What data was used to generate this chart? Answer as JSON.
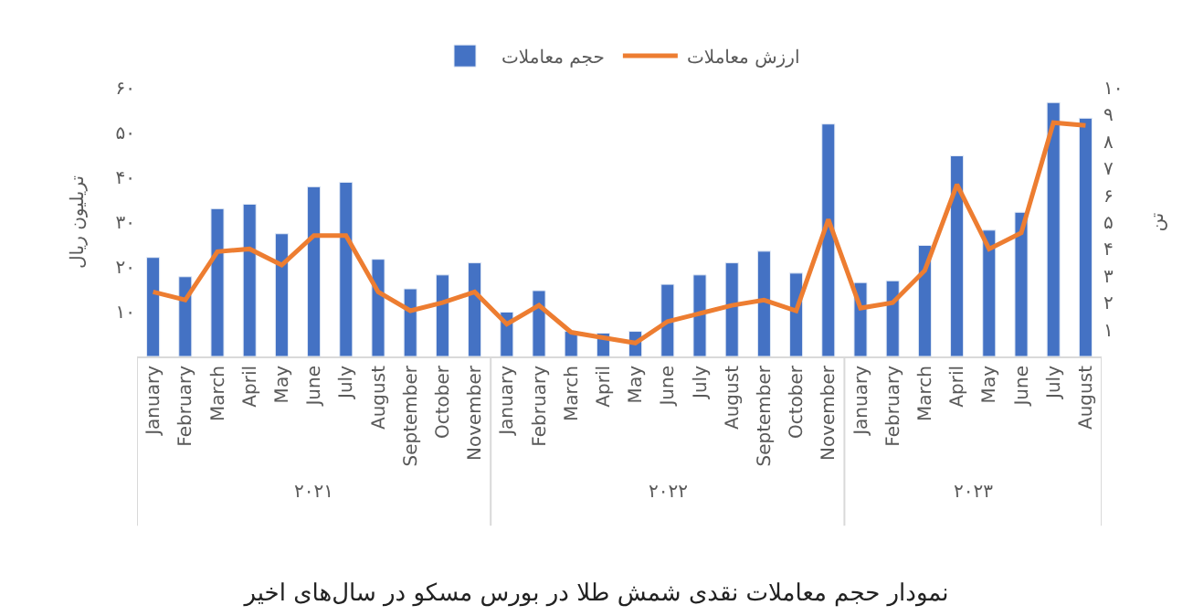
{
  "chart_data": {
    "type": "bar",
    "title": "نمودار حجم معاملات نقدی شمش طلا در بورس مسکو در سال‌های اخیر",
    "categories": [
      "January",
      "February",
      "March",
      "April",
      "May",
      "June",
      "July",
      "August",
      "September",
      "October",
      "November",
      "January",
      "February",
      "March",
      "April",
      "May",
      "June",
      "July",
      "August",
      "September",
      "October",
      "November",
      "January",
      "February",
      "March",
      "April",
      "May",
      "June",
      "July",
      "August"
    ],
    "annotations": [
      "۲۰۲۱",
      "۲۰۲۲",
      "۲۰۲۳"
    ],
    "ylabel": "تریلیون ریال",
    "y2label": "تن",
    "series": [
      {
        "name": "حجم معاملات",
        "color": "#4472c4",
        "values": [
          22.1,
          17.8,
          33.0,
          34.0,
          27.4,
          37.9,
          38.9,
          21.7,
          15.1,
          18.2,
          20.9,
          9.9,
          14.7,
          5.6,
          5.2,
          5.6,
          16.1,
          18.2,
          20.9,
          23.5,
          18.6,
          51.9,
          16.5,
          16.9,
          24.8,
          44.8,
          28.2,
          32.2,
          56.7,
          53.2
        ]
      },
      {
        "name": "ارزش معاملات",
        "type": "line",
        "axis": "y2",
        "color": "#ed7d31",
        "values": [
          2.4,
          2.1,
          3.9,
          4.0,
          3.4,
          4.5,
          4.5,
          2.4,
          1.7,
          2.0,
          2.4,
          1.2,
          1.9,
          0.9,
          0.7,
          0.5,
          1.3,
          1.6,
          1.9,
          2.1,
          1.7,
          5.1,
          1.8,
          2.0,
          3.2,
          6.4,
          4.0,
          4.6,
          8.7,
          8.6
        ]
      }
    ],
    "ylim": [
      0,
      60
    ],
    "yticks": [
      {
        "value": 10,
        "label": "۱۰"
      },
      {
        "value": 20,
        "label": "۲۰"
      },
      {
        "value": 30,
        "label": "۳۰"
      },
      {
        "value": 40,
        "label": "۴۰"
      },
      {
        "value": 50,
        "label": "۵۰"
      },
      {
        "value": 60,
        "label": "۶۰"
      }
    ],
    "y2lim": [
      0,
      10
    ],
    "y2ticks": [
      {
        "value": 1,
        "label": "۱"
      },
      {
        "value": 2,
        "label": "۲"
      },
      {
        "value": 3,
        "label": "۳"
      },
      {
        "value": 4,
        "label": "۴"
      },
      {
        "value": 5,
        "label": "۵"
      },
      {
        "value": 6,
        "label": "۶"
      },
      {
        "value": 7,
        "label": "۷"
      },
      {
        "value": 8,
        "label": "۸"
      },
      {
        "value": 9,
        "label": "۹"
      },
      {
        "value": 10,
        "label": "۱۰"
      }
    ],
    "legend": "top",
    "marker": "none",
    "line_style": "solid",
    "grid": false
  }
}
